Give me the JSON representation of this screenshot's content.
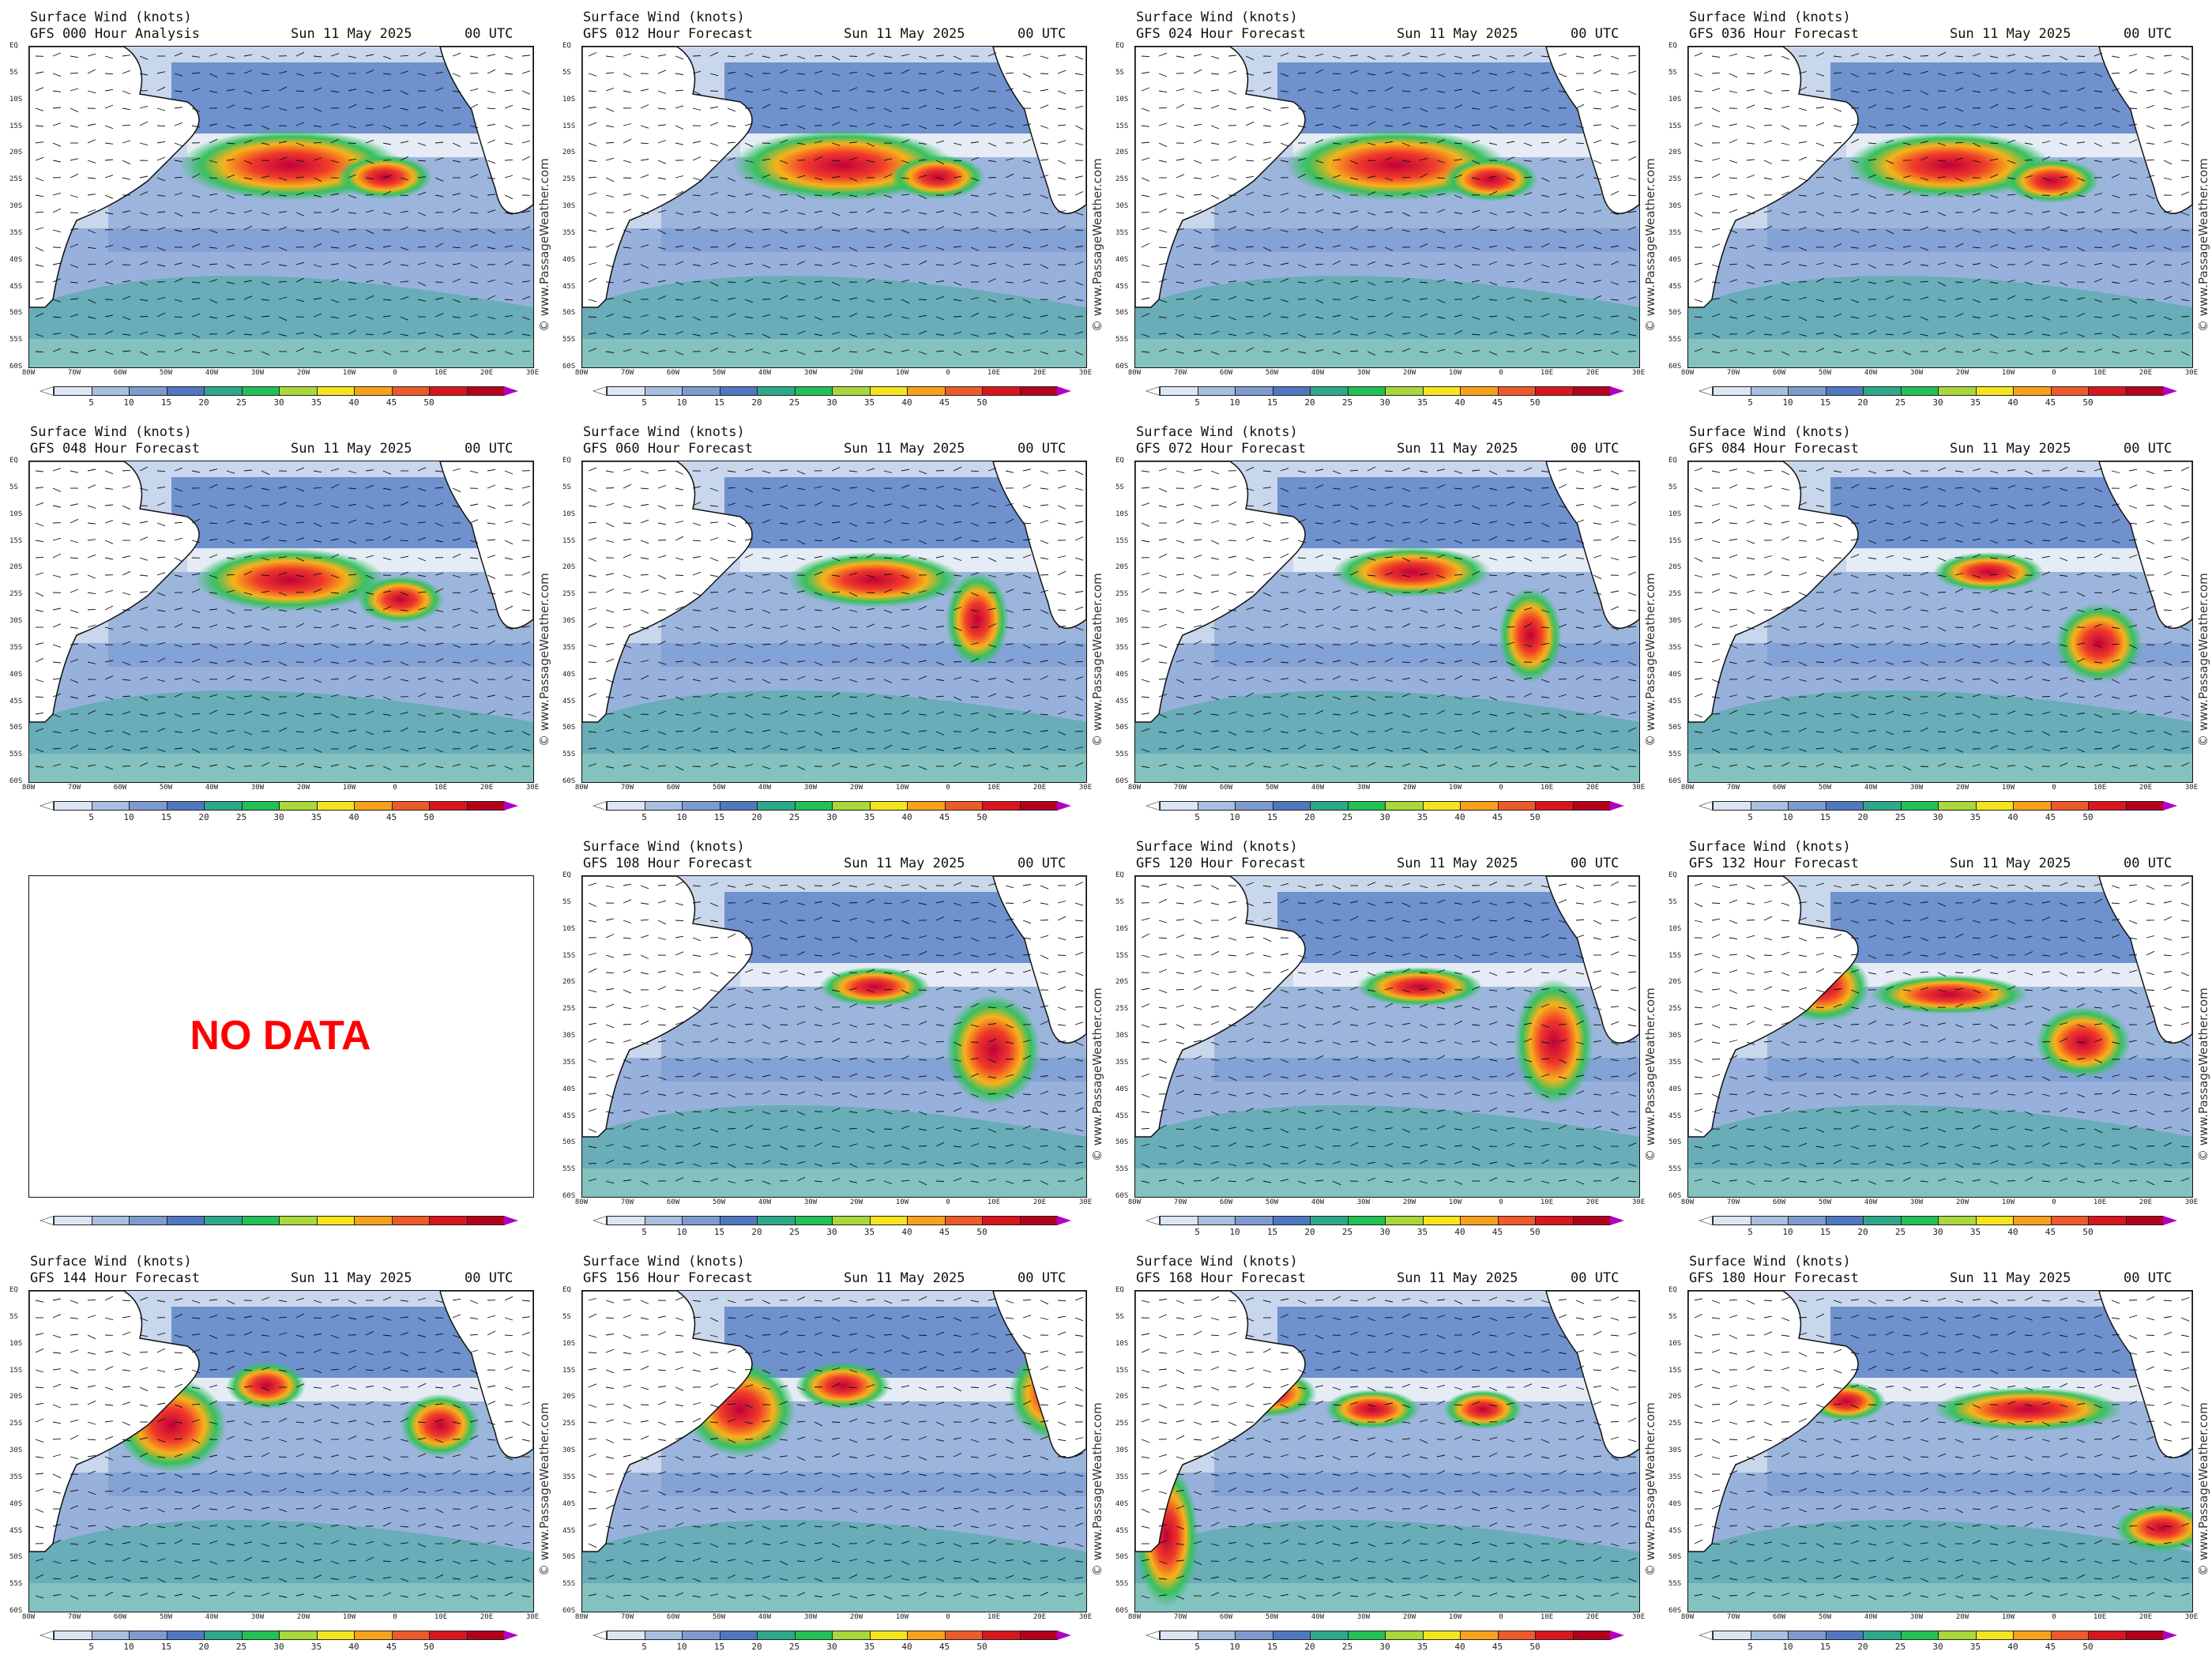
{
  "header": {
    "title": "Surface Wind (knots)",
    "date": "Sun 11 May 2025",
    "time": "00 UTC",
    "credit": "© www.PassageWeather.com"
  },
  "no_data_label": "NO DATA",
  "panels": [
    {
      "label": "GFS 000 Hour Analysis",
      "has_data": true
    },
    {
      "label": "GFS 012 Hour Forecast",
      "has_data": true
    },
    {
      "label": "GFS 024 Hour Forecast",
      "has_data": true
    },
    {
      "label": "GFS 036 Hour Forecast",
      "has_data": true
    },
    {
      "label": "GFS 048 Hour Forecast",
      "has_data": true
    },
    {
      "label": "GFS 060 Hour Forecast",
      "has_data": true
    },
    {
      "label": "GFS 072 Hour Forecast",
      "has_data": true
    },
    {
      "label": "GFS 084 Hour Forecast",
      "has_data": true
    },
    {
      "label": "",
      "has_data": false
    },
    {
      "label": "GFS 108 Hour Forecast",
      "has_data": true
    },
    {
      "label": "GFS 120 Hour Forecast",
      "has_data": true
    },
    {
      "label": "GFS 132 Hour Forecast",
      "has_data": true
    },
    {
      "label": "GFS 144 Hour Forecast",
      "has_data": true
    },
    {
      "label": "GFS 156 Hour Forecast",
      "has_data": true
    },
    {
      "label": "GFS 168 Hour Forecast",
      "has_data": true
    },
    {
      "label": "GFS 180 Hour Forecast",
      "has_data": true
    }
  ],
  "lat_labels": [
    "EQ",
    "5S",
    "10S",
    "15S",
    "20S",
    "25S",
    "30S",
    "35S",
    "40S",
    "45S",
    "50S",
    "55S",
    "60S"
  ],
  "lon_labels": [
    "80W",
    "70W",
    "60W",
    "50W",
    "40W",
    "30W",
    "20W",
    "10W",
    "0",
    "10E",
    "20E",
    "30E"
  ],
  "colorbar": {
    "ticks": [
      "5",
      "10",
      "15",
      "20",
      "25",
      "30",
      "35",
      "40",
      "45",
      "50"
    ],
    "colors": [
      "#dce6f2",
      "#a9bfe0",
      "#7e9bd0",
      "#4f78c0",
      "#2ea88a",
      "#22c055",
      "#a8d83a",
      "#f5e51c",
      "#f7a21b",
      "#ef5a2a",
      "#d8161e",
      "#b3001b"
    ],
    "over_color": "#b000c8"
  }
}
